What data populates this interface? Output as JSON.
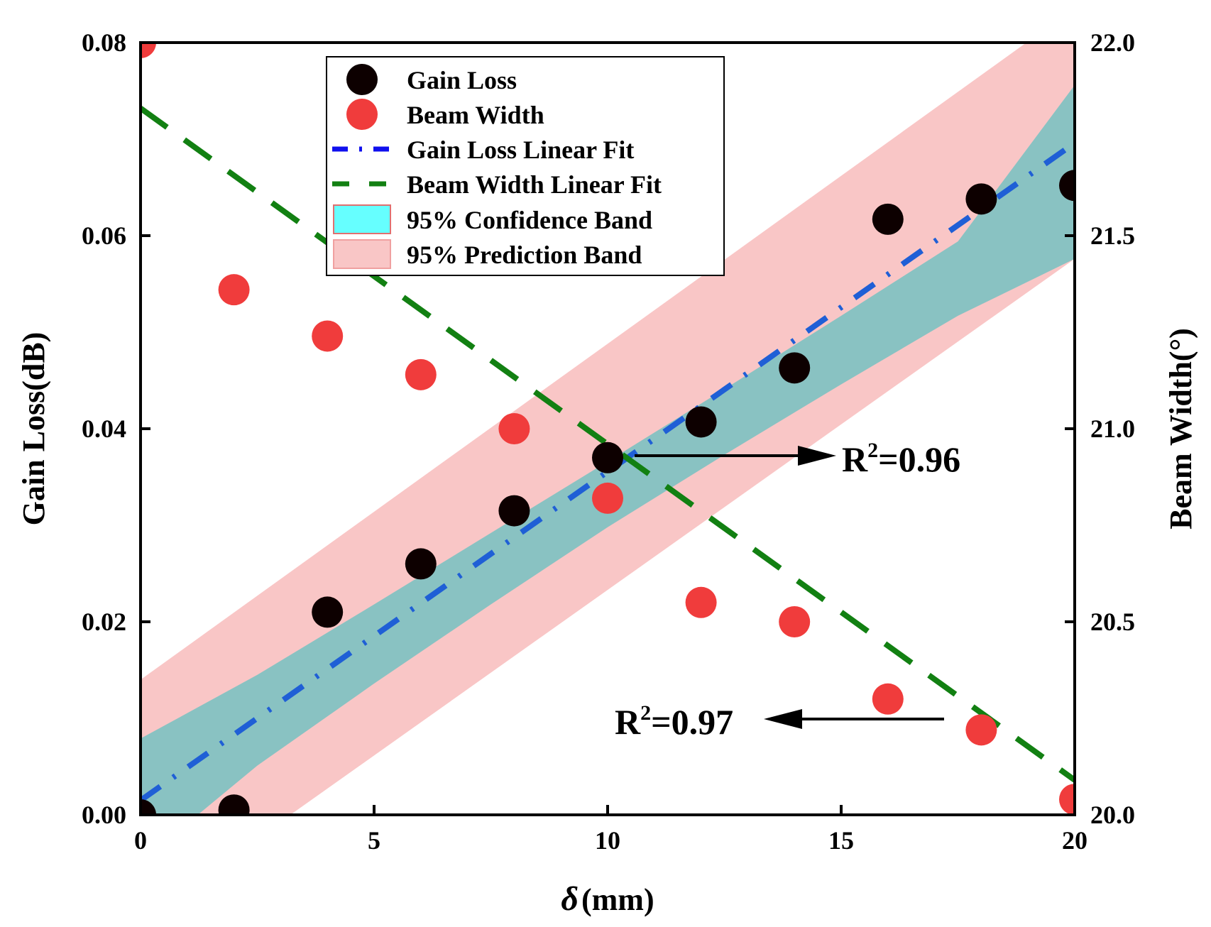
{
  "colors": {
    "gain_loss": "#0d0000",
    "beam_width": "#f03c3c",
    "gain_fit": "#1f5fd6",
    "gain_fit_legend": "#1010ee",
    "beam_fit": "#128012",
    "confidence_band": "#44c0c0",
    "confidence_legend": "#66ffff",
    "prediction_band": "#f9c6c6",
    "annotation": "#000000"
  },
  "chart_data": {
    "type": "scatter",
    "x_axis": {
      "label_symbol": "δ",
      "label_unit": "(mm)",
      "range": [
        0,
        20
      ],
      "ticks": [
        0,
        5,
        10,
        15,
        20
      ],
      "tick_labels": [
        "0",
        "5",
        "10",
        "15",
        "20"
      ]
    },
    "y_left_axis": {
      "label": "Gain Loss(dB)",
      "range": [
        0,
        0.08
      ],
      "ticks": [
        0,
        0.02,
        0.04,
        0.06,
        0.08
      ],
      "tick_labels": [
        "0.00",
        "0.02",
        "0.04",
        "0.06",
        "0.08"
      ]
    },
    "y_right_axis": {
      "label": "Beam Width(°)",
      "range": [
        20.0,
        22.0
      ],
      "ticks": [
        20.0,
        20.5,
        21.0,
        21.5,
        22.0
      ],
      "tick_labels": [
        "20.0",
        "20.5",
        "21.0",
        "21.5",
        "22.0"
      ]
    },
    "series": [
      {
        "name": "Gain Loss",
        "axis": "left",
        "x": [
          0,
          2,
          4,
          6,
          8,
          10,
          12,
          14,
          16,
          18,
          20
        ],
        "values": [
          0.0,
          0.0005,
          0.021,
          0.026,
          0.0315,
          0.037,
          0.0407,
          0.0463,
          0.0617,
          0.0638,
          0.0652
        ]
      },
      {
        "name": "Beam Width",
        "axis": "right",
        "x": [
          0,
          2,
          4,
          6,
          8,
          10,
          12,
          14,
          16,
          18,
          20
        ],
        "values": [
          22.0,
          21.36,
          21.24,
          21.14,
          21.0,
          20.82,
          20.55,
          20.5,
          20.3,
          20.22,
          20.04
        ]
      }
    ],
    "fits": [
      {
        "name": "Gain Loss  Linear Fit",
        "axis": "left",
        "x": [
          0,
          20
        ],
        "values": [
          0.0015,
          0.0696
        ]
      },
      {
        "name": "Beam Width  Linear Fit",
        "axis": "right",
        "x": [
          0,
          20
        ],
        "values": [
          21.83,
          20.09
        ]
      }
    ],
    "bands": [
      {
        "name": "95% Confidence Band",
        "axis": "left",
        "x": [
          0,
          2.5,
          5,
          7.5,
          10,
          12.5,
          15,
          17.5,
          20
        ],
        "upper": [
          0.0079,
          0.0145,
          0.0218,
          0.0292,
          0.0366,
          0.0441,
          0.0517,
          0.0594,
          0.0756
        ],
        "lower": [
          -0.0049,
          0.0051,
          0.0136,
          0.0218,
          0.0298,
          0.0373,
          0.0446,
          0.0517,
          0.0576
        ]
      },
      {
        "name": "95% Prediction Band",
        "axis": "left",
        "x": [
          0,
          20
        ],
        "upper": [
          0.014,
          0.0836
        ],
        "lower": [
          -0.011,
          0.0576
        ]
      }
    ],
    "legend": {
      "position": "top-center",
      "entries": [
        "Gain Loss",
        "Beam Width",
        "Gain Loss  Linear Fit",
        "Beam Width  Linear Fit",
        "95% Confidence Band",
        "95% Prediction Band"
      ]
    },
    "annotations": [
      {
        "base": "R",
        "sup": "2",
        "value": "=0.96",
        "arrow": "right",
        "target_axis": "left"
      },
      {
        "base": "R",
        "sup": "2",
        "value": "=0.97",
        "arrow": "left",
        "target_axis": "right"
      }
    ]
  }
}
